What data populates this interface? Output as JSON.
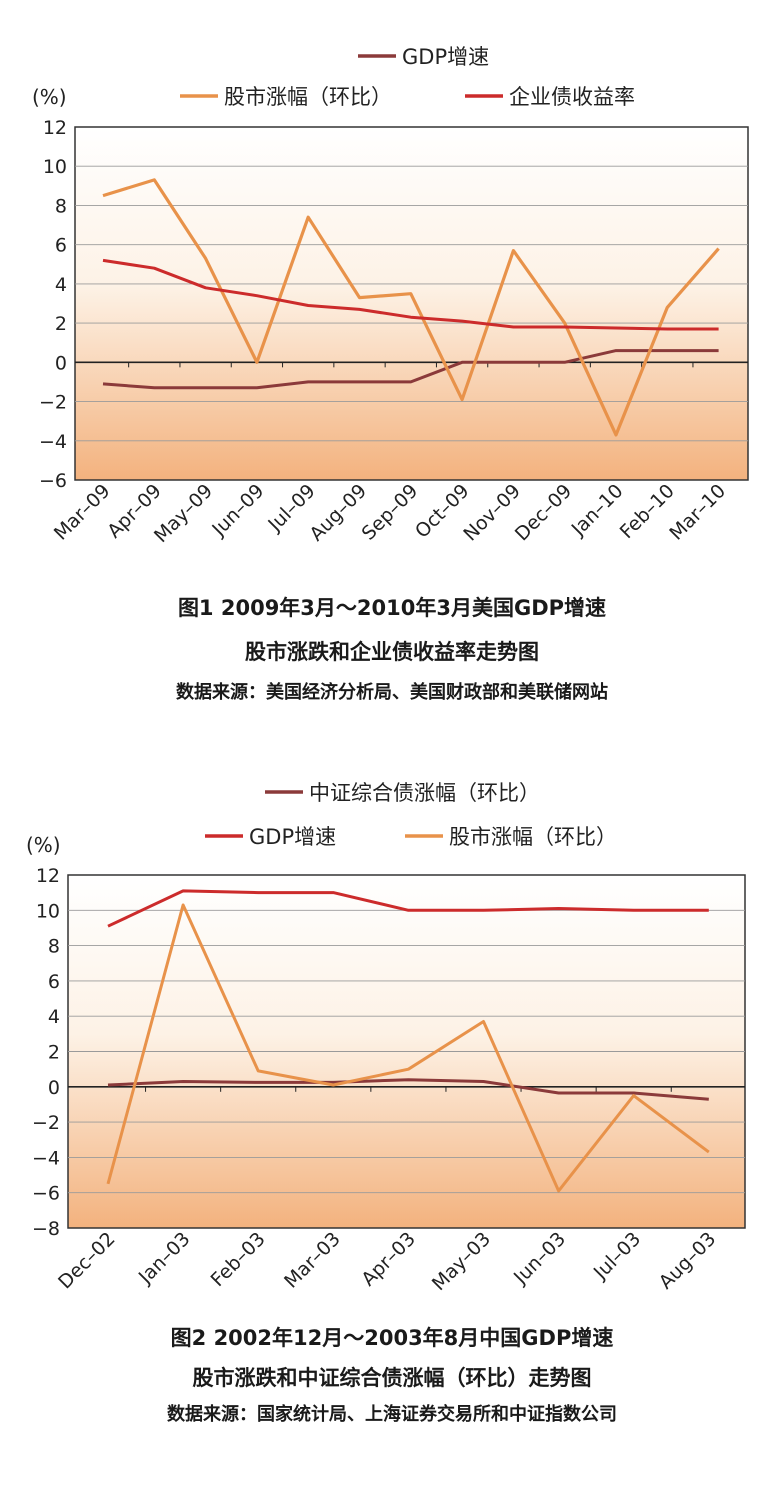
{
  "chart_data": [
    {
      "type": "line",
      "unit_label": "(%)",
      "categories": [
        "Mar-09",
        "Apr-09",
        "May-09",
        "Jun-09",
        "Jul-09",
        "Aug-09",
        "Sep-09",
        "Oct-09",
        "Nov-09",
        "Dec-09",
        "Jan-10",
        "Feb-10",
        "Mar-10"
      ],
      "ylim": [
        -6,
        12
      ],
      "yticks": [
        "12",
        "10",
        "8",
        "6",
        "4",
        "2",
        "0",
        "-2",
        "-4",
        "-6"
      ],
      "grid": true,
      "series": [
        {
          "name": "GDP增速",
          "color": "#8b3a3a",
          "values": [
            -1.1,
            -1.3,
            -1.3,
            -1.3,
            -1.0,
            -1.0,
            -1.0,
            0.0,
            0.0,
            0.0,
            0.6,
            0.6,
            0.6
          ]
        },
        {
          "name": "股市涨幅（环比）",
          "color": "#e8924a",
          "values": [
            8.5,
            9.3,
            5.3,
            0.0,
            7.4,
            3.3,
            3.5,
            -1.9,
            5.7,
            2.0,
            -3.7,
            2.8,
            5.8
          ]
        },
        {
          "name": "企业债收益率",
          "color": "#cc2b2b",
          "values": [
            5.2,
            4.8,
            3.8,
            3.4,
            2.9,
            2.7,
            2.3,
            2.1,
            1.8,
            1.8,
            1.75,
            1.7,
            1.7
          ]
        }
      ],
      "caption_line1": "图1  2009年3月～2010年3月美国GDP增速",
      "caption_line2": "股市涨跌和企业债收益率走势图",
      "caption_source": "数据来源：美国经济分析局、美国财政部和美联储网站"
    },
    {
      "type": "line",
      "unit_label": "(%)",
      "categories": [
        "Dec-02",
        "Jan-03",
        "Feb-03",
        "Mar-03",
        "Apr-03",
        "May-03",
        "Jun-03",
        "Jul-03",
        "Aug-03"
      ],
      "ylim": [
        -8,
        12
      ],
      "yticks": [
        "12",
        "10",
        "8",
        "6",
        "4",
        "2",
        "0",
        "-2",
        "-4",
        "-6",
        "-8"
      ],
      "grid": true,
      "series": [
        {
          "name": "中证综合债涨幅（环比）",
          "color": "#8b3a3a",
          "values": [
            0.1,
            0.3,
            0.25,
            0.25,
            0.4,
            0.3,
            -0.35,
            -0.35,
            -0.7
          ]
        },
        {
          "name": "GDP增速",
          "color": "#cc2b2b",
          "values": [
            9.1,
            11.1,
            11.0,
            11.0,
            10.0,
            10.0,
            10.1,
            10.0,
            10.0
          ]
        },
        {
          "name": "股市涨幅（环比）",
          "color": "#e8924a",
          "values": [
            -5.5,
            10.3,
            0.9,
            0.1,
            1.0,
            3.7,
            -5.9,
            -0.5,
            -3.7
          ]
        }
      ],
      "caption_line1": "图2  2002年12月～2003年8月中国GDP增速",
      "caption_line2": "股市涨跌和中证综合债涨幅（环比）走势图",
      "caption_source": "数据来源：国家统计局、上海证券交易所和中证指数公司"
    }
  ]
}
